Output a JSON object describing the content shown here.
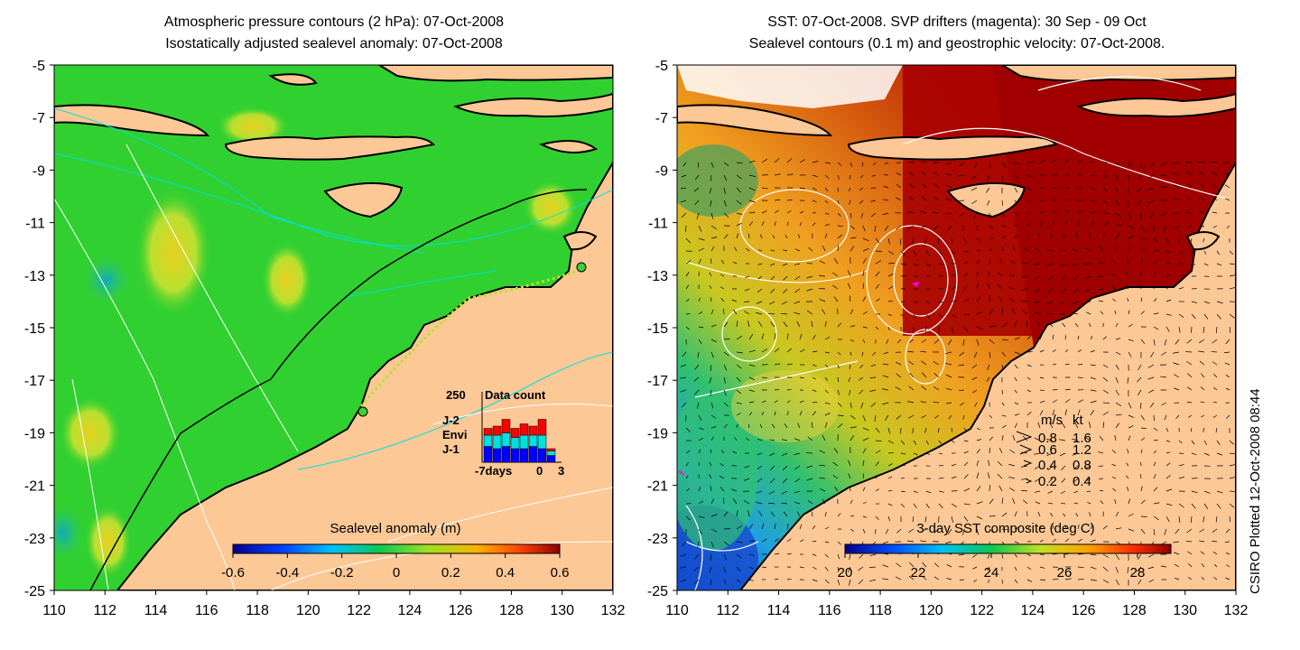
{
  "left_panel": {
    "title_line1": "Atmospheric pressure contours (2 hPa): 07-Oct-2008",
    "title_line2": "Isostatically adjusted sealevel anomaly: 07-Oct-2008",
    "colorbar_title": "Sealevel anomaly (m)",
    "colorbar_ticks": [
      "-0.6",
      "-0.4",
      "-0.2",
      "0",
      "0.2",
      "0.4",
      "0.6"
    ],
    "inset": {
      "top_value": "250",
      "title": "Data count",
      "legend": [
        {
          "label": "J-2",
          "color": "#ff0000"
        },
        {
          "label": "Envi",
          "color": "#00e0e0"
        },
        {
          "label": "J-1",
          "color": "#0000ff"
        }
      ],
      "x_left": "-7days",
      "x_mid": "0",
      "x_right": "3"
    }
  },
  "right_panel": {
    "title_line1": "SST: 07-Oct-2008. SVP drifters (magenta): 30 Sep - 09 Oct",
    "title_line2": "Sealevel contours (0.1 m) and geostrophic velocity: 07-Oct-2008.",
    "colorbar_title": "3-day SST composite (deg C)",
    "colorbar_ticks": [
      "20",
      "22",
      "24",
      "26",
      "28"
    ],
    "velocity_legend": {
      "header_ms": "m/s",
      "header_kt": "kt",
      "rows": [
        {
          "ms": "0.8",
          "kt": "1.6"
        },
        {
          "ms": "0.6",
          "kt": "1.2"
        },
        {
          "ms": "0.4",
          "kt": "0.8"
        },
        {
          "ms": "0.2",
          "kt": "0.4"
        }
      ]
    }
  },
  "y_ticks": [
    "-5",
    "-7",
    "-9",
    "-11",
    "-13",
    "-15",
    "-17",
    "-19",
    "-21",
    "-23",
    "-25"
  ],
  "x_ticks": [
    "110",
    "112",
    "114",
    "116",
    "118",
    "120",
    "122",
    "124",
    "126",
    "128",
    "130",
    "132"
  ],
  "credit": "CSIRO Plotted 12-Oct-2008 08:44",
  "colors": {
    "land": "#fcc896",
    "ocean_green": "#2fcf2f",
    "sst_warm": "#a80000",
    "contour_cyan": "#00e0e0",
    "contour_white": "#ffffff"
  }
}
